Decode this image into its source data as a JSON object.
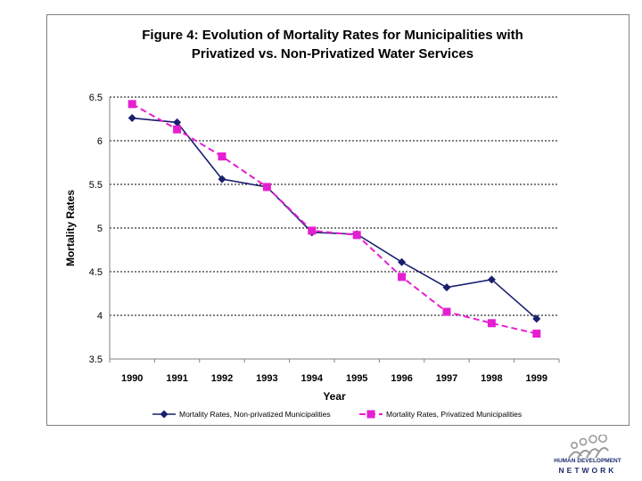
{
  "chart_data": {
    "type": "line",
    "title": [
      "Figure 4: Evolution of Mortality Rates for Municipalities with",
      "Privatized vs. Non-Privatized Water Services"
    ],
    "xlabel": "Year",
    "ylabel": "Mortality Rates",
    "categories": [
      "1990",
      "1991",
      "1992",
      "1993",
      "1994",
      "1995",
      "1996",
      "1997",
      "1998",
      "1999"
    ],
    "ylim": [
      3.5,
      6.5
    ],
    "yticks": [
      "3.5",
      "4",
      "4.5",
      "5",
      "5.5",
      "6",
      "6.5"
    ],
    "grid": true,
    "legend_position": "bottom",
    "series": [
      {
        "name": "Mortality Rates, Non-privatized Municipalities",
        "color": "#1a1f6e",
        "marker": "diamond",
        "dash": "solid",
        "values": [
          6.26,
          6.21,
          5.56,
          5.47,
          4.95,
          4.93,
          4.61,
          4.32,
          4.41,
          3.96
        ]
      },
      {
        "name": "Mortality Rates, Privatized Municipalities",
        "color": "#e61ed2",
        "marker": "square",
        "dash": "dashed",
        "values": [
          6.42,
          6.13,
          5.82,
          5.47,
          4.97,
          4.92,
          4.44,
          4.04,
          3.91,
          3.79
        ]
      }
    ]
  },
  "logo": {
    "line1": "HUMAN DEVELOPMENT",
    "line2": "NETWORK",
    "color": "#1f2b6e"
  }
}
